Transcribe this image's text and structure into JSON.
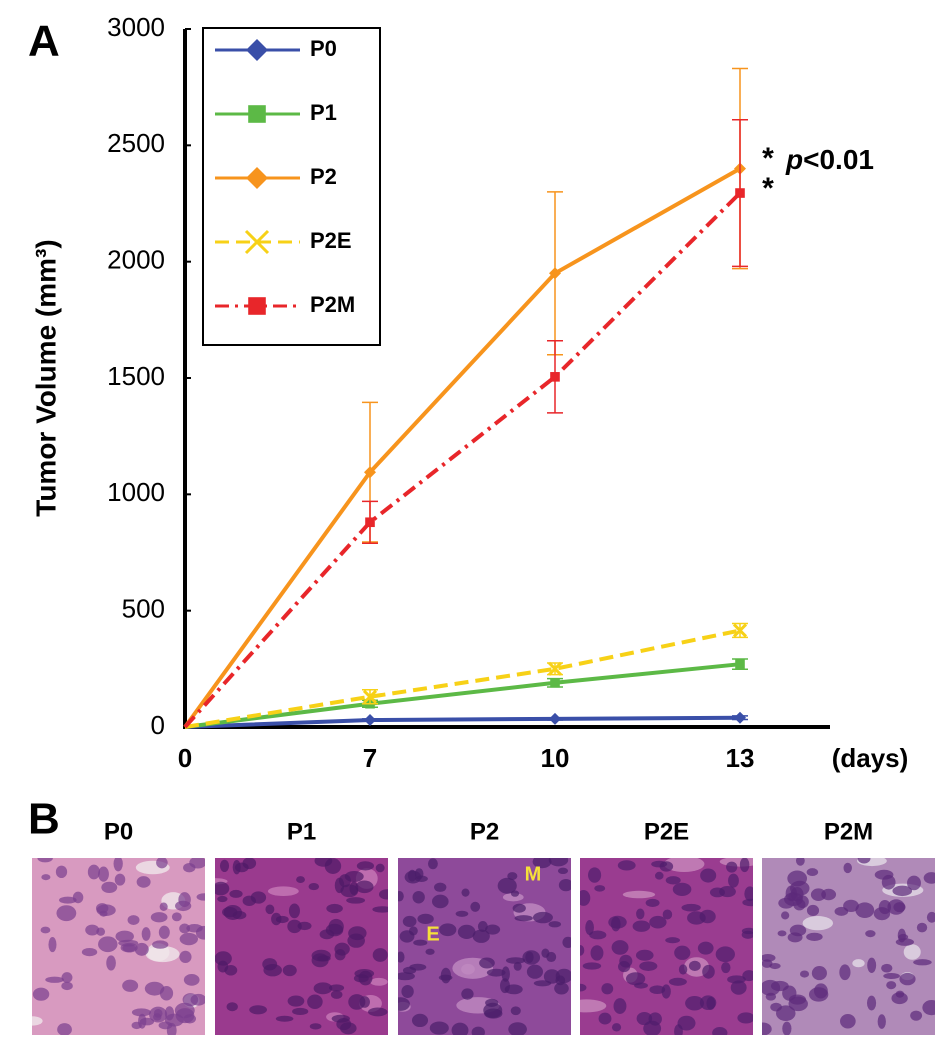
{
  "panel_a_label": "A",
  "chart_data": {
    "type": "line",
    "ylabel": "Tumor Volume (mm³)",
    "xlabel": "(days)",
    "categories": [
      "0",
      "7",
      "10",
      "13"
    ],
    "ylim": [
      0,
      3000
    ],
    "yticks": [
      0,
      500,
      1000,
      1500,
      2000,
      2500,
      3000
    ],
    "grid": false,
    "legend": "upper left",
    "annotation": {
      "stars": [
        "*",
        "*"
      ],
      "p_symbol": "p",
      "p_text": "<0.01"
    },
    "series": [
      {
        "name": "P0",
        "color": "#3a4fa8",
        "marker": "diamond",
        "dash": "solid",
        "values": [
          0,
          30,
          35,
          40
        ],
        "errors": [
          0,
          5,
          5,
          8
        ]
      },
      {
        "name": "P1",
        "color": "#5cb946",
        "marker": "square",
        "dash": "solid",
        "values": [
          0,
          100,
          190,
          270
        ],
        "errors": [
          0,
          15,
          18,
          22
        ]
      },
      {
        "name": "P2",
        "color": "#f7941d",
        "marker": "diamond",
        "dash": "solid",
        "values": [
          0,
          1095,
          1950,
          2400
        ],
        "errors": [
          0,
          300,
          350,
          430
        ]
      },
      {
        "name": "P2E",
        "color": "#f7d117",
        "marker": "x",
        "dash": "dashed",
        "values": [
          0,
          130,
          250,
          415
        ],
        "errors": [
          0,
          30,
          25,
          30
        ]
      },
      {
        "name": "P2M",
        "color": "#e8262a",
        "marker": "square",
        "dash": "dashdot",
        "values": [
          0,
          880,
          1505,
          2295
        ],
        "errors": [
          0,
          90,
          155,
          315
        ]
      }
    ]
  },
  "panel_b": {
    "label": "B",
    "images": [
      {
        "label": "P0"
      },
      {
        "label": "P1"
      },
      {
        "label": "P2",
        "marks": [
          "M",
          "E"
        ]
      },
      {
        "label": "P2E"
      },
      {
        "label": "P2M"
      }
    ]
  }
}
